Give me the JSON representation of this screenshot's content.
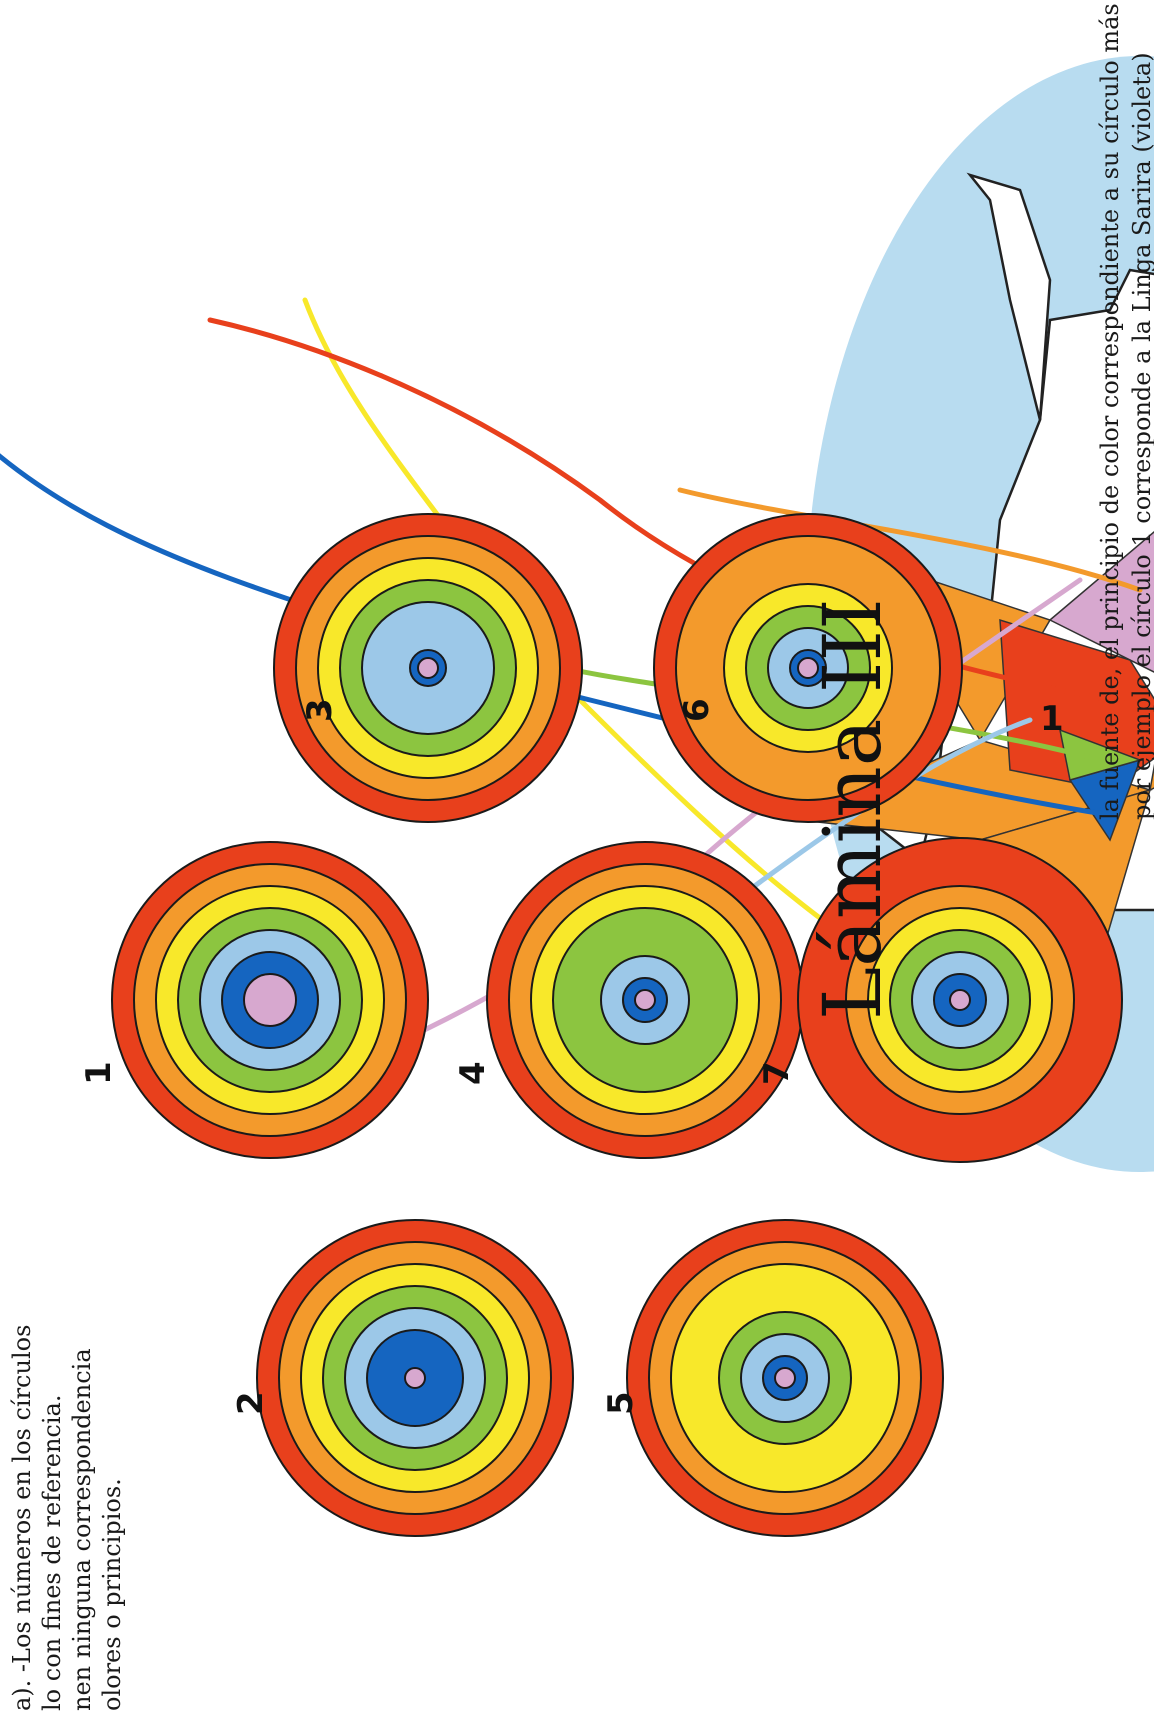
{
  "colors": {
    "red": "#e8401c",
    "orange": "#f39a2c",
    "yellow": "#f8e82a",
    "green": "#8cc540",
    "lightblue": "#9cc8e8",
    "blue": "#1565c0",
    "violet": "#d7a8cf",
    "aura": "#b8dcf0",
    "head": "#f4d90f"
  },
  "circle_labels": {
    "c1": "1",
    "c2": "2",
    "c3": "3",
    "c4": "4",
    "c5": "5",
    "c6": "6",
    "c7": "7"
  },
  "caption_left": [
    "a). -Los números en los círculos",
    "lo con fines de referencia.",
    "nen ninguna correspondencia",
    "olores o principios."
  ],
  "caption_right": [
    "la fuente de, el principio de color correspondiente a su círculo más am",
    "por ejemplo el círculo 1 corresponde a la Linga Sarira (violeta)"
  ],
  "plate_title": "Lámina III"
}
